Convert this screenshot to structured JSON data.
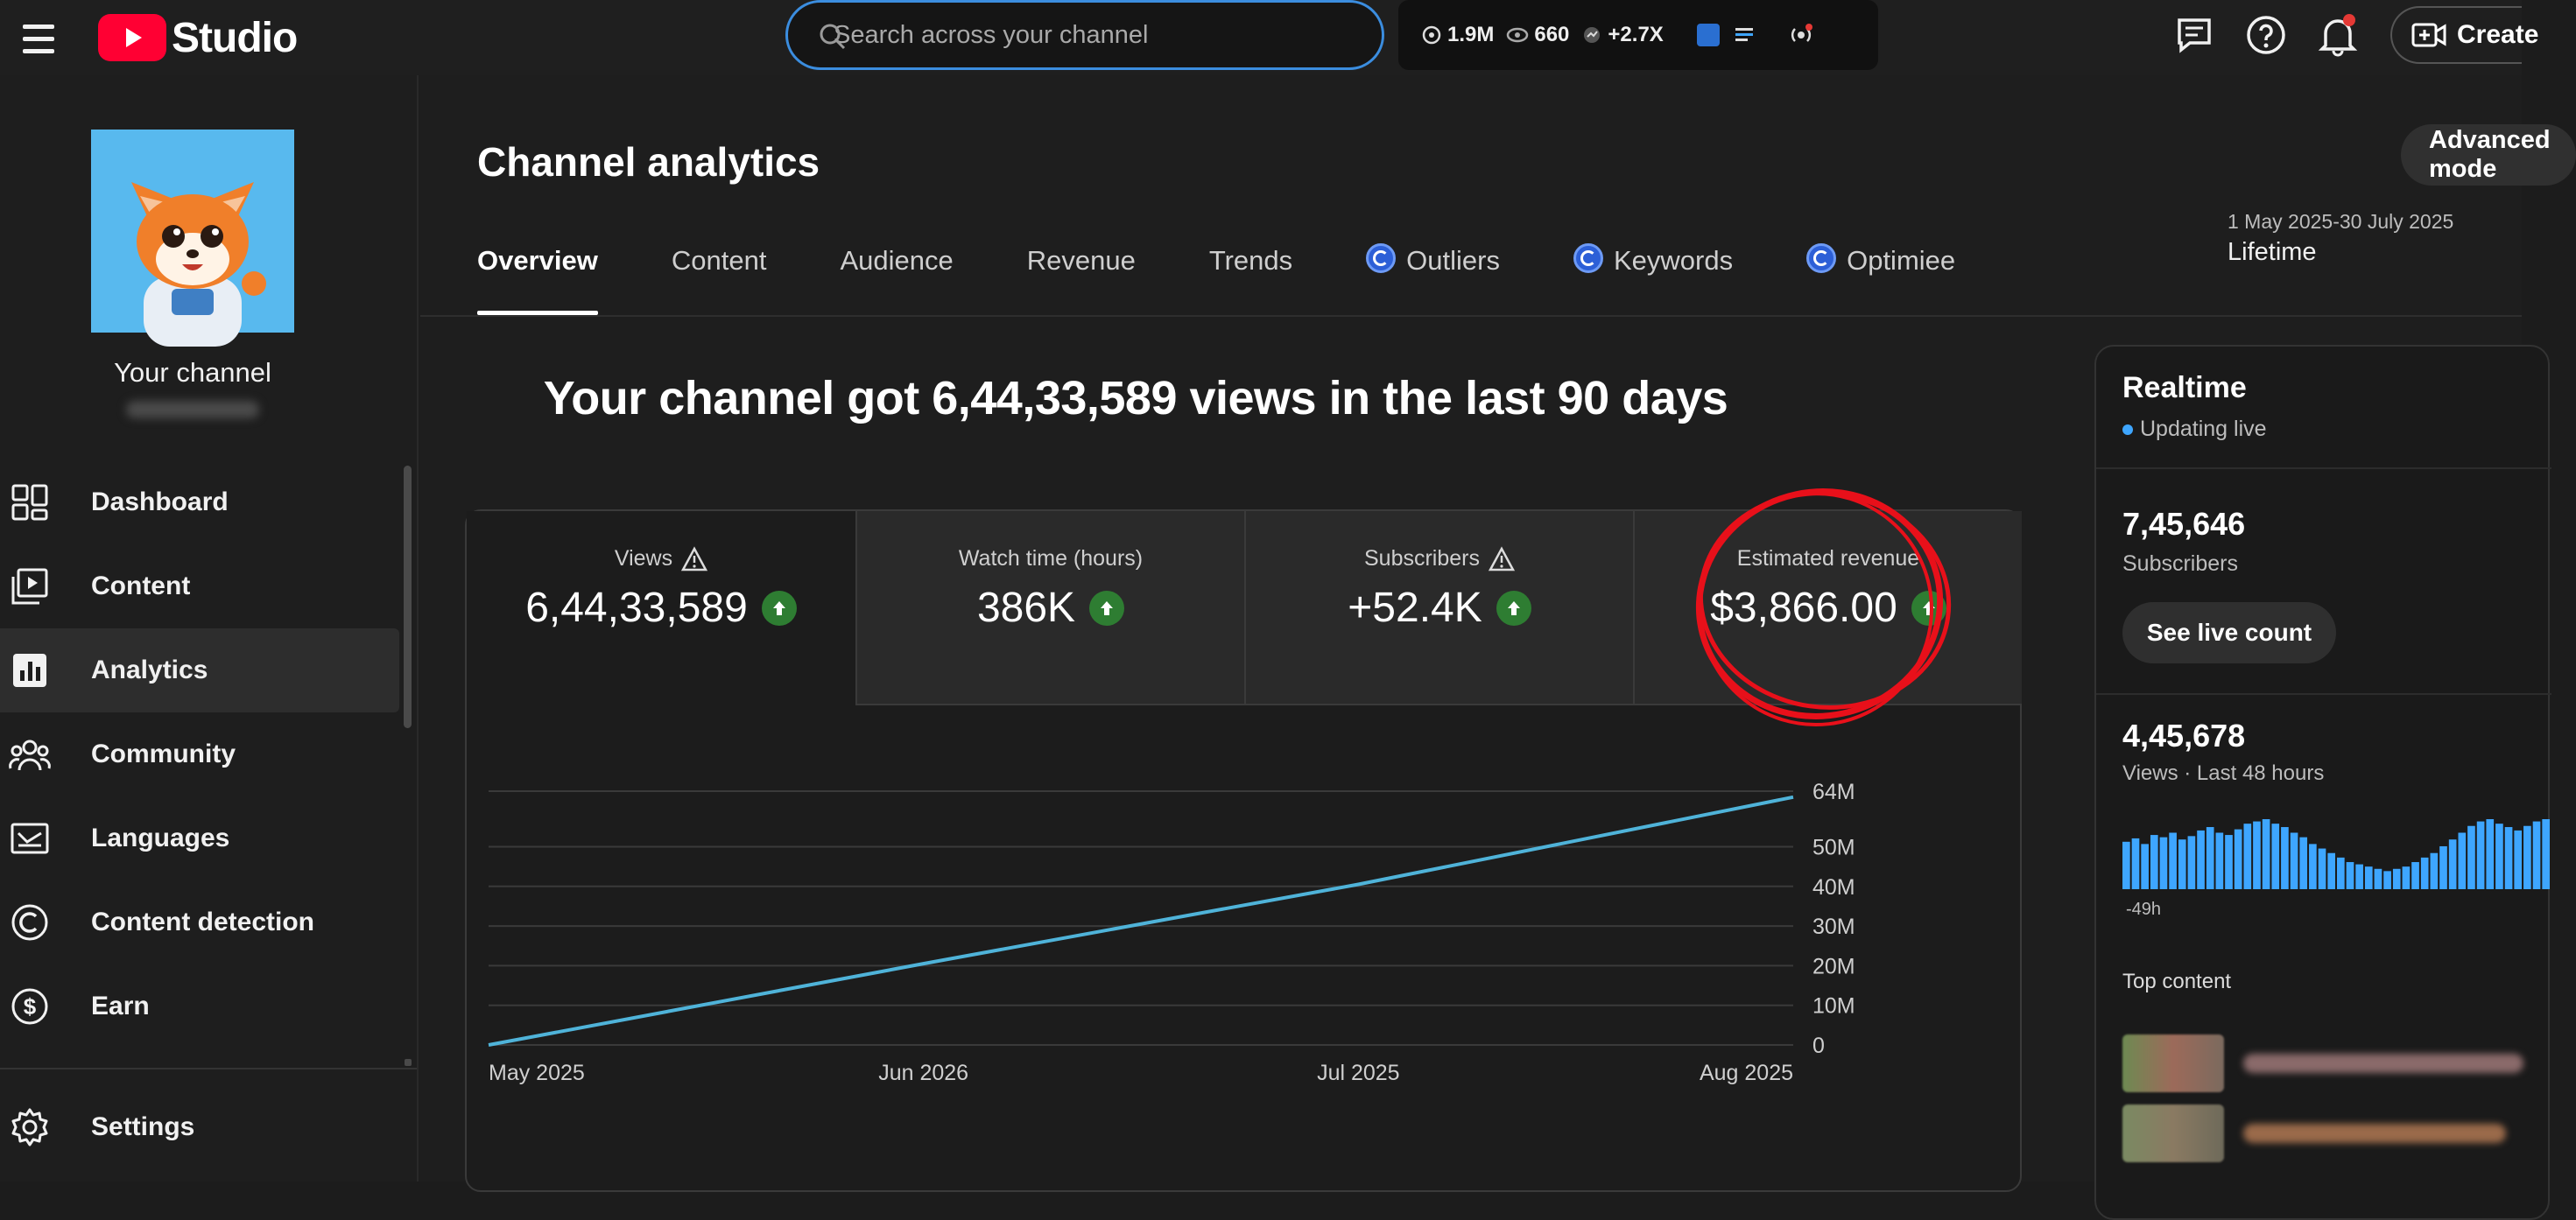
{
  "header": {
    "brand": "Studio",
    "search_placeholder": "Search across your channel",
    "stats": [
      {
        "icon": "eye-target-icon",
        "value": "1.9M"
      },
      {
        "icon": "view-icon",
        "value": "660"
      },
      {
        "icon": "growth-icon",
        "value": "+2.7X"
      }
    ],
    "create_label": "Create"
  },
  "sidebar": {
    "channel_label": "Your channel",
    "items": [
      {
        "label": "Dashboard",
        "icon": "dashboard-icon"
      },
      {
        "label": "Content",
        "icon": "content-icon"
      },
      {
        "label": "Analytics",
        "icon": "analytics-icon",
        "active": true
      },
      {
        "label": "Community",
        "icon": "community-icon"
      },
      {
        "label": "Languages",
        "icon": "languages-icon"
      },
      {
        "label": "Content detection",
        "icon": "content-detection-icon"
      },
      {
        "label": "Earn",
        "icon": "earn-icon"
      },
      {
        "label": "Settings",
        "icon": "settings-icon"
      }
    ]
  },
  "main": {
    "title": "Channel analytics",
    "advanced_label": "Advanced mode",
    "date_range": "1 May 2025-30 July 2025",
    "date_period": "Lifetime",
    "tabs": [
      {
        "label": "Overview",
        "active": true
      },
      {
        "label": "Content"
      },
      {
        "label": "Audience"
      },
      {
        "label": "Revenue"
      },
      {
        "label": "Trends"
      },
      {
        "label": "Outliers",
        "badge": true
      },
      {
        "label": "Keywords",
        "badge": true
      },
      {
        "label": "Optimiee",
        "badge": true
      }
    ],
    "headline": "Your channel got 6,44,33,589 views in the last 90 days",
    "metrics": [
      {
        "label": "Views",
        "value": "6,44,33,589",
        "warning": true
      },
      {
        "label": "Watch time (hours)",
        "value": "386K",
        "warning": false
      },
      {
        "label": "Subscribers",
        "value": "+52.4K",
        "warning": true
      },
      {
        "label": "Estimated revenue",
        "value": "$3,866.00",
        "warning": false
      }
    ]
  },
  "chart_data": {
    "type": "line",
    "title": "",
    "x": [
      "May 2025",
      "Jun 2026",
      "Jul 2025",
      "Aug 2025"
    ],
    "x_positions": [
      0,
      1,
      2,
      3
    ],
    "series": [
      {
        "name": "Views",
        "color": "#4fb3d9",
        "points": [
          [
            0,
            0
          ],
          [
            1,
            20.5
          ],
          [
            2,
            40.5
          ],
          [
            3,
            62.5
          ]
        ]
      }
    ],
    "y_ticks": [
      {
        "value": 64,
        "label": "64M"
      },
      {
        "value": 50,
        "label": "50M"
      },
      {
        "value": 40,
        "label": "40M"
      },
      {
        "value": 30,
        "label": "30M"
      },
      {
        "value": 20,
        "label": "20M"
      },
      {
        "value": 10,
        "label": "10M"
      },
      {
        "value": 0,
        "label": "0"
      }
    ],
    "ylim": [
      0,
      64
    ],
    "xlabel": "",
    "ylabel": ""
  },
  "realtime": {
    "title": "Realtime",
    "live_label": "Updating live",
    "subscribers_value": "7,45,646",
    "subscribers_label": "Subscribers",
    "live_count_label": "See live count",
    "views_value": "4,45,678",
    "views_label": "Views · Last 48 hours",
    "hour_label": "-49h",
    "top_content_label": "Top content",
    "bar_values": [
      42,
      45,
      40,
      48,
      46,
      50,
      44,
      47,
      52,
      55,
      50,
      48,
      53,
      58,
      60,
      62,
      58,
      55,
      50,
      46,
      40,
      36,
      32,
      28,
      24,
      22,
      20,
      18,
      16,
      18,
      20,
      24,
      28,
      32,
      38,
      44,
      50,
      56,
      60,
      62,
      58,
      55,
      52,
      56,
      60,
      62
    ],
    "accent": "#3ea6ff"
  },
  "colors": {
    "accent": "#3ea6ff",
    "brand": "#ff0033",
    "positive": "#2e7d32",
    "annotation": "#e8101a"
  }
}
